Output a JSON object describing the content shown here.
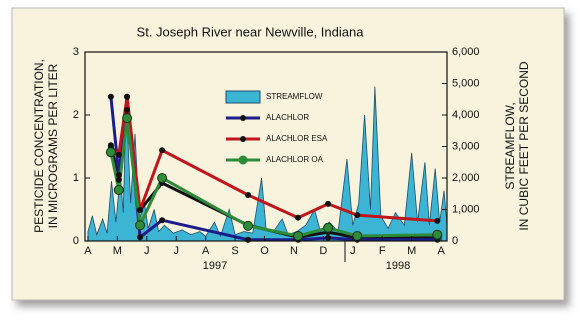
{
  "chart_data": {
    "type": "line",
    "title": "St. Joseph River near Newville, Indiana",
    "ylabel": [
      "PESTICIDE CONCENTRATION,",
      "IN MICROGRAMS PER LITER"
    ],
    "y2label": [
      "STREAMFLOW,",
      "IN CUBIC FEET PER SECOND"
    ],
    "xlim": [
      -0.1,
      12.2
    ],
    "xticks": [
      {
        "value": 0,
        "label": "A"
      },
      {
        "value": 1,
        "label": "M"
      },
      {
        "value": 2,
        "label": "J"
      },
      {
        "value": 3,
        "label": "J"
      },
      {
        "value": 4,
        "label": "A"
      },
      {
        "value": 5,
        "label": "S"
      },
      {
        "value": 6,
        "label": "O"
      },
      {
        "value": 7,
        "label": "N"
      },
      {
        "value": 8,
        "label": "D"
      },
      {
        "value": 9,
        "label": "J"
      },
      {
        "value": 10,
        "label": "F"
      },
      {
        "value": 11,
        "label": "M"
      },
      {
        "value": 12,
        "label": "A"
      }
    ],
    "year_labels": [
      "1997",
      "1998"
    ],
    "ylim": [
      0,
      3
    ],
    "yticks": [
      0,
      1,
      2,
      3
    ],
    "y2lim": [
      0,
      6000
    ],
    "y2ticks": [
      0,
      {
        "value": 1000,
        "label": "1,000"
      },
      {
        "value": 2000,
        "label": "2,000"
      },
      {
        "value": 3000,
        "label": "3,000"
      },
      {
        "value": 4000,
        "label": "4,000"
      },
      {
        "value": 5000,
        "label": "5,000"
      },
      {
        "value": 6000,
        "label": "6,000"
      }
    ],
    "series": [
      {
        "name": "STREAMFLOW",
        "type": "area",
        "axis": "y2",
        "color": "#3cb4d4",
        "x": [
          0,
          0.15,
          0.3,
          0.5,
          0.65,
          0.8,
          0.95,
          1.1,
          1.2,
          1.3,
          1.45,
          1.6,
          1.75,
          1.9,
          2.05,
          2.25,
          2.4,
          2.6,
          2.9,
          3.2,
          3.5,
          3.8,
          4.0,
          4.3,
          4.5,
          4.8,
          5.0,
          5.3,
          5.6,
          5.9,
          6.05,
          6.3,
          6.6,
          6.8,
          7.1,
          7.4,
          7.7,
          7.9,
          8.2,
          8.5,
          8.8,
          9.0,
          9.2,
          9.4,
          9.6,
          9.75,
          9.95,
          10.2,
          10.45,
          10.75,
          11.0,
          11.2,
          11.45,
          11.6,
          11.8,
          11.95,
          12.1,
          12.2
        ],
        "values": [
          300,
          800,
          200,
          700,
          250,
          1900,
          600,
          2100,
          900,
          4500,
          1200,
          3400,
          600,
          1300,
          400,
          1000,
          300,
          500,
          250,
          350,
          200,
          300,
          150,
          600,
          150,
          1000,
          200,
          300,
          250,
          2000,
          400,
          300,
          700,
          200,
          300,
          500,
          1000,
          300,
          600,
          300,
          2600,
          500,
          1200,
          4000,
          1000,
          4900,
          800,
          400,
          900,
          500,
          2800,
          600,
          2500,
          500,
          2300,
          600,
          1600,
          500
        ]
      },
      {
        "type": "line",
        "color": "#111111",
        "marker_color": "#111111",
        "x": [
          0.78,
          1.05,
          1.33,
          1.77,
          2.52,
          5.44,
          7.14,
          8.16,
          9.15,
          11.87
        ],
        "values": [
          1.52,
          0.97,
          2.08,
          0.49,
          0.92,
          0.25,
          0.06,
          0.14,
          0.05,
          0.05
        ]
      },
      {
        "name": "ALACHLOR",
        "type": "line",
        "color": "#1c1c8a",
        "marker_color": "#111111",
        "x": [
          0.78,
          1.05,
          1.33,
          1.77,
          2.52,
          5.44,
          7.14,
          8.16,
          9.15,
          11.87
        ],
        "values": [
          2.29,
          1.05,
          2.29,
          0.06,
          0.33,
          0.02,
          0.02,
          0.05,
          0.02,
          0.02
        ]
      },
      {
        "name": "ALACHLOR ESA",
        "type": "line",
        "color": "#c0151a",
        "marker_color": "#111111",
        "x": [
          0.78,
          1.05,
          1.33,
          1.77,
          2.52,
          5.44,
          7.14,
          8.16,
          9.15,
          11.87
        ],
        "values": [
          1.49,
          1.37,
          2.29,
          0.49,
          1.44,
          0.73,
          0.37,
          0.59,
          0.41,
          0.32
        ]
      },
      {
        "name": "ALACHLOR OA",
        "type": "line",
        "color": "#2e8b3a",
        "marker_color": "#2e8b3a",
        "x": [
          0.78,
          1.05,
          1.33,
          1.77,
          2.52,
          5.44,
          7.14,
          8.16,
          9.15,
          11.87
        ],
        "values": [
          1.41,
          0.81,
          1.95,
          0.25,
          1.0,
          0.24,
          0.08,
          0.21,
          0.08,
          0.1
        ]
      }
    ]
  }
}
